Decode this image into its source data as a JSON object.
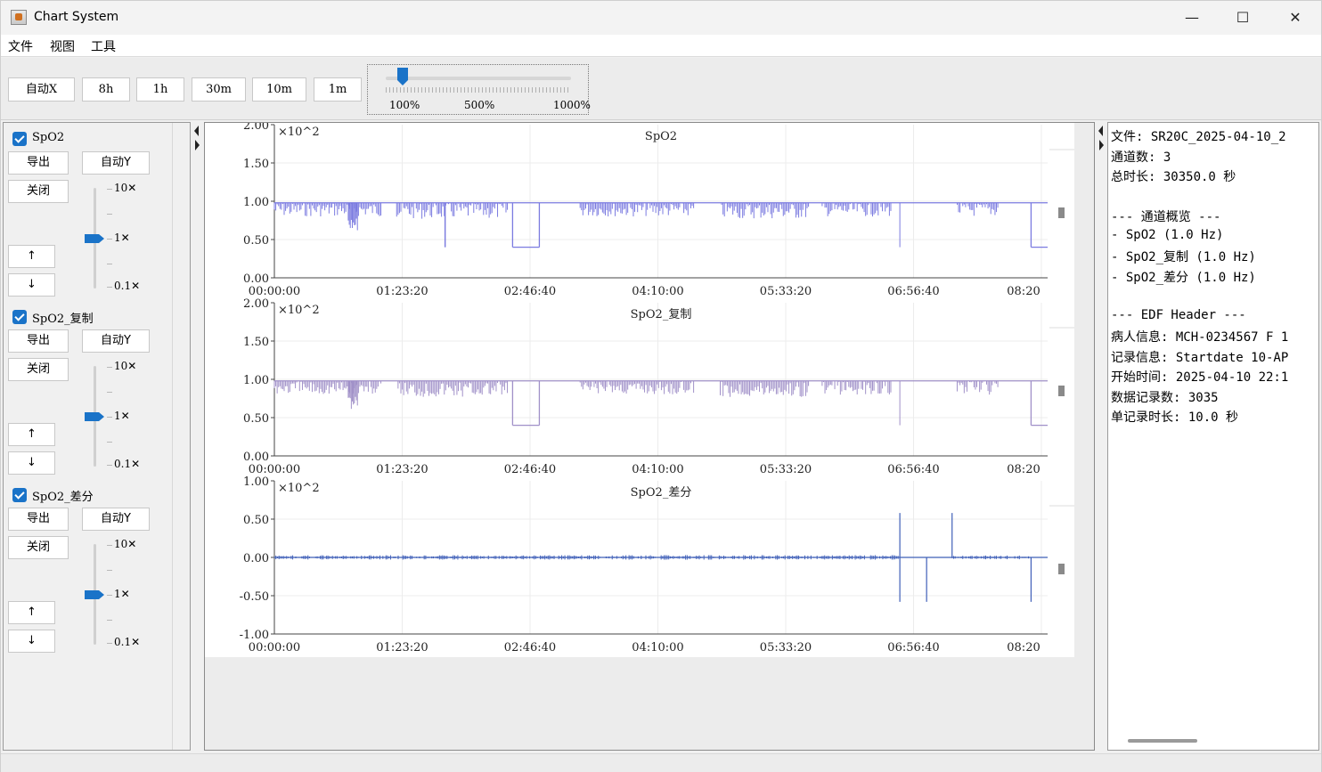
{
  "window": {
    "title": "Chart System",
    "minimize": "—",
    "maximize": "☐",
    "close": "✕"
  },
  "menu": [
    "文件",
    "视图",
    "工具"
  ],
  "toolbar": {
    "buttons": [
      "自动X",
      "8h",
      "1h",
      "30m",
      "10m",
      "1m"
    ],
    "zoom": {
      "labels": [
        "100%",
        "500%",
        "1000%"
      ],
      "value_percent": 100
    }
  },
  "channels": [
    {
      "name": "SpO2",
      "checked": true,
      "export": "导出",
      "auto_y": "自动Y",
      "close": "关闭",
      "up": "↑",
      "down": "↓",
      "scale_top": "10✕",
      "scale_mid": "1✕",
      "scale_bottom": "0.1✕"
    },
    {
      "name": "SpO2_复制",
      "checked": true,
      "export": "导出",
      "auto_y": "自动Y",
      "close": "关闭",
      "up": "↑",
      "down": "↓",
      "scale_top": "10✕",
      "scale_mid": "1✕",
      "scale_bottom": "0.1✕"
    },
    {
      "name": "SpO2_差分",
      "checked": true,
      "export": "导出",
      "auto_y": "自动Y",
      "close": "关闭",
      "up": "↑",
      "down": "↓",
      "scale_top": "10✕",
      "scale_mid": "1✕",
      "scale_bottom": "0.1✕"
    }
  ],
  "chart_data": [
    {
      "type": "line",
      "title": "SpO2",
      "multiplier": "×10^2",
      "y_ticks": [
        "2.00",
        "1.50",
        "1.00",
        "0.50",
        "0.00"
      ],
      "x_ticks": [
        "00:00:00",
        "01:23:20",
        "02:46:40",
        "04:10:00",
        "05:33:20",
        "06:56:40",
        "08:20"
      ],
      "ylim": [
        0,
        2
      ],
      "xlim_seconds": [
        0,
        30350
      ],
      "color": "#7b7be0",
      "baseline": 0.98,
      "segments": [
        {
          "x0": 6700,
          "x1": 6700,
          "y": 0.4
        },
        {
          "x0": 9350,
          "x1": 10400,
          "y": 0.4
        },
        {
          "x0": 29700,
          "x1": 30350,
          "y": 0.4
        }
      ]
    },
    {
      "type": "line",
      "title": "SpO2_复制",
      "multiplier": "×10^2",
      "y_ticks": [
        "2.00",
        "1.50",
        "1.00",
        "0.50",
        "0.00"
      ],
      "x_ticks": [
        "00:00:00",
        "01:23:20",
        "02:46:40",
        "04:10:00",
        "05:33:20",
        "06:56:40",
        "08:20"
      ],
      "ylim": [
        0,
        2
      ],
      "xlim_seconds": [
        0,
        30350
      ],
      "color": "#a090c8",
      "baseline": 0.98,
      "segments": [
        {
          "x0": 9350,
          "x1": 10400,
          "y": 0.4
        },
        {
          "x0": 29700,
          "x1": 30350,
          "y": 0.4
        }
      ]
    },
    {
      "type": "line",
      "title": "SpO2_差分",
      "multiplier": "×10^2",
      "y_ticks": [
        "1.00",
        "0.50",
        "0.00",
        "-0.50",
        "-1.00"
      ],
      "x_ticks": [
        "00:00:00",
        "01:23:20",
        "02:46:40",
        "04:10:00",
        "05:33:20",
        "06:56:40",
        "08:20"
      ],
      "ylim": [
        -1,
        1
      ],
      "xlim_seconds": [
        0,
        30350
      ],
      "color": "#3f5fb8",
      "baseline": 0.0,
      "spikes": [
        {
          "x": 24550,
          "y0": -0.58,
          "y1": 0.58
        },
        {
          "x": 25600,
          "y0": -0.58,
          "y1": 0.0
        },
        {
          "x": 26600,
          "y0": 0.0,
          "y1": 0.58
        },
        {
          "x": 29700,
          "y0": -0.58,
          "y1": 0.0
        }
      ]
    }
  ],
  "info": [
    "文件: SR20C_2025-04-10_2",
    "通道数: 3",
    "总时长: 30350.0 秒",
    "",
    "--- 通道概览 ---",
    "- SpO2 (1.0 Hz)",
    "- SpO2_复制 (1.0 Hz)",
    "- SpO2_差分 (1.0 Hz)",
    "",
    "--- EDF Header ---",
    "病人信息: MCH-0234567 F 1",
    "记录信息: Startdate 10-AP",
    "开始时间: 2025-04-10 22:1",
    "数据记录数: 3035",
    "单记录时长: 10.0 秒"
  ]
}
